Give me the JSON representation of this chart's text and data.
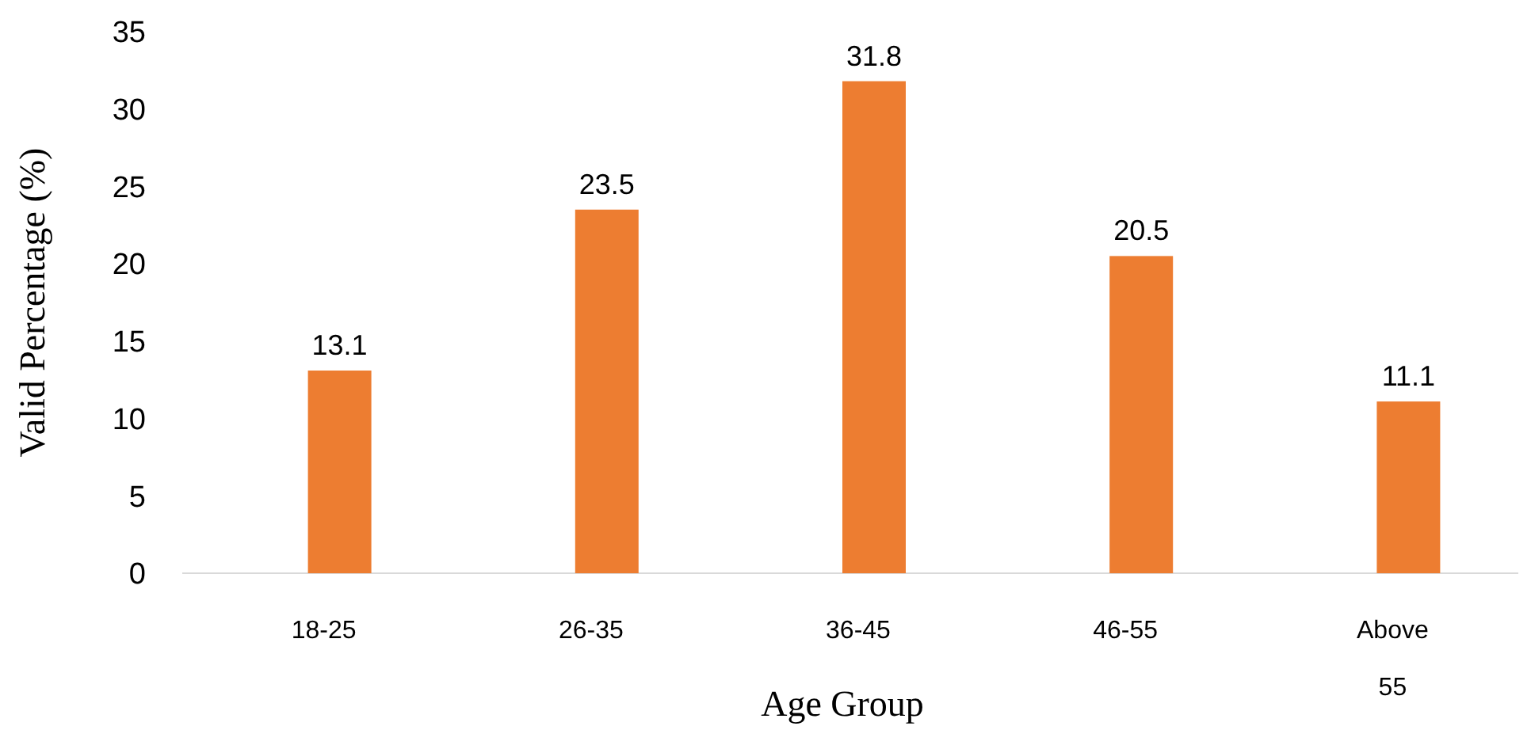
{
  "chart_data": {
    "type": "bar",
    "xlabel": "Age Group",
    "ylabel": "Valid Percentage (%)",
    "categories": [
      "18-25",
      "26-35",
      "36-45",
      "46-55",
      "Above 55"
    ],
    "values": [
      13.1,
      23.5,
      31.8,
      20.5,
      11.1
    ],
    "color": "#ed7d31",
    "ylim": [
      0,
      35
    ],
    "yticks": [
      0,
      5,
      10,
      15,
      20,
      25,
      30,
      35
    ],
    "grid": false,
    "data_labels": true
  }
}
